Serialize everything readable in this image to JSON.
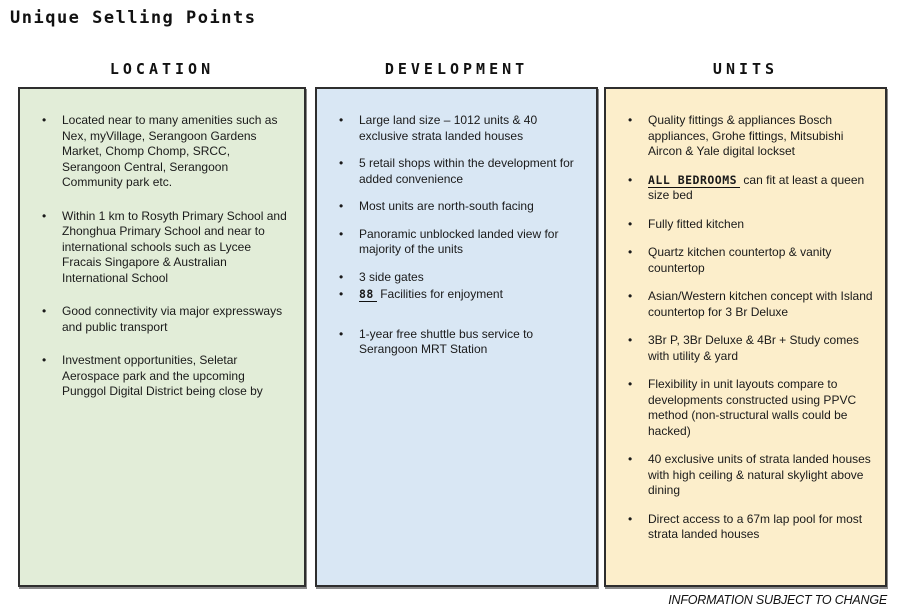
{
  "page": {
    "title": "Unique Selling Points",
    "footer": "INFORMATION SUBJECT TO CHANGE"
  },
  "colors": {
    "location_bg": "#e2edd8",
    "development_bg": "#d9e7f4",
    "units_bg": "#fceecb",
    "box_border": "#2e2e2e",
    "text": "#1a1a1a"
  },
  "bullet_glyph": "•",
  "columns": [
    {
      "id": "location",
      "header": "LOCATION",
      "bg": "#e2edd8",
      "bullets": [
        {
          "text": "Located near to many amenities such as Nex, myVillage, Serangoon Gardens Market, Chomp Chomp, SRCC, Serangoon Central, Serangoon Community park etc."
        },
        {
          "text": "Within 1 km to Rosyth Primary School and Zhonghua Primary School and near to international schools such as Lycee Fracais Singapore & Australian International School"
        },
        {
          "text": "Good connectivity via major expressways and public transport"
        },
        {
          "text": "Investment opportunities, Seletar Aerospace park and the upcoming Punggol Digital District being close by"
        }
      ]
    },
    {
      "id": "development",
      "header": "DEVELOPMENT",
      "bg": "#d9e7f4",
      "bullets": [
        {
          "text": "Large land size – 1012 units & 40 exclusive strata landed houses"
        },
        {
          "text": "5 retail shops within the development for added convenience"
        },
        {
          "text": "Most units are north-south facing"
        },
        {
          "text": "Panoramic unblocked landed view for majority of the units"
        },
        {
          "text": "3 side gates"
        },
        {
          "prefix": "88",
          "text": " Facilities for enjoyment",
          "spacing": "tight"
        },
        {
          "text": "1-year free shuttle bus service to Serangoon MRT Station",
          "spacing": "loose"
        }
      ]
    },
    {
      "id": "units",
      "header": "UNITS",
      "bg": "#fceecb",
      "bullets": [
        {
          "text": "Quality fittings & appliances Bosch appliances, Grohe fittings, Mitsubishi Aircon & Yale digital lockset"
        },
        {
          "prefix": "ALL BEDROOMS",
          "text": " can fit at least a queen size bed"
        },
        {
          "text": "Fully fitted kitchen"
        },
        {
          "text": "Quartz kitchen countertop & vanity countertop"
        },
        {
          "text": "Asian/Western kitchen concept with Island countertop for 3 Br Deluxe"
        },
        {
          "text": "3Br P, 3Br Deluxe & 4Br + Study comes with utility & yard"
        },
        {
          "text": "Flexibility in unit layouts compare to developments constructed using PPVC method (non-structural walls could be hacked)"
        },
        {
          "text": "40 exclusive units of strata landed houses with high ceiling & natural skylight above dining"
        },
        {
          "text": "Direct access to a 67m lap pool for most strata landed houses"
        }
      ]
    }
  ]
}
